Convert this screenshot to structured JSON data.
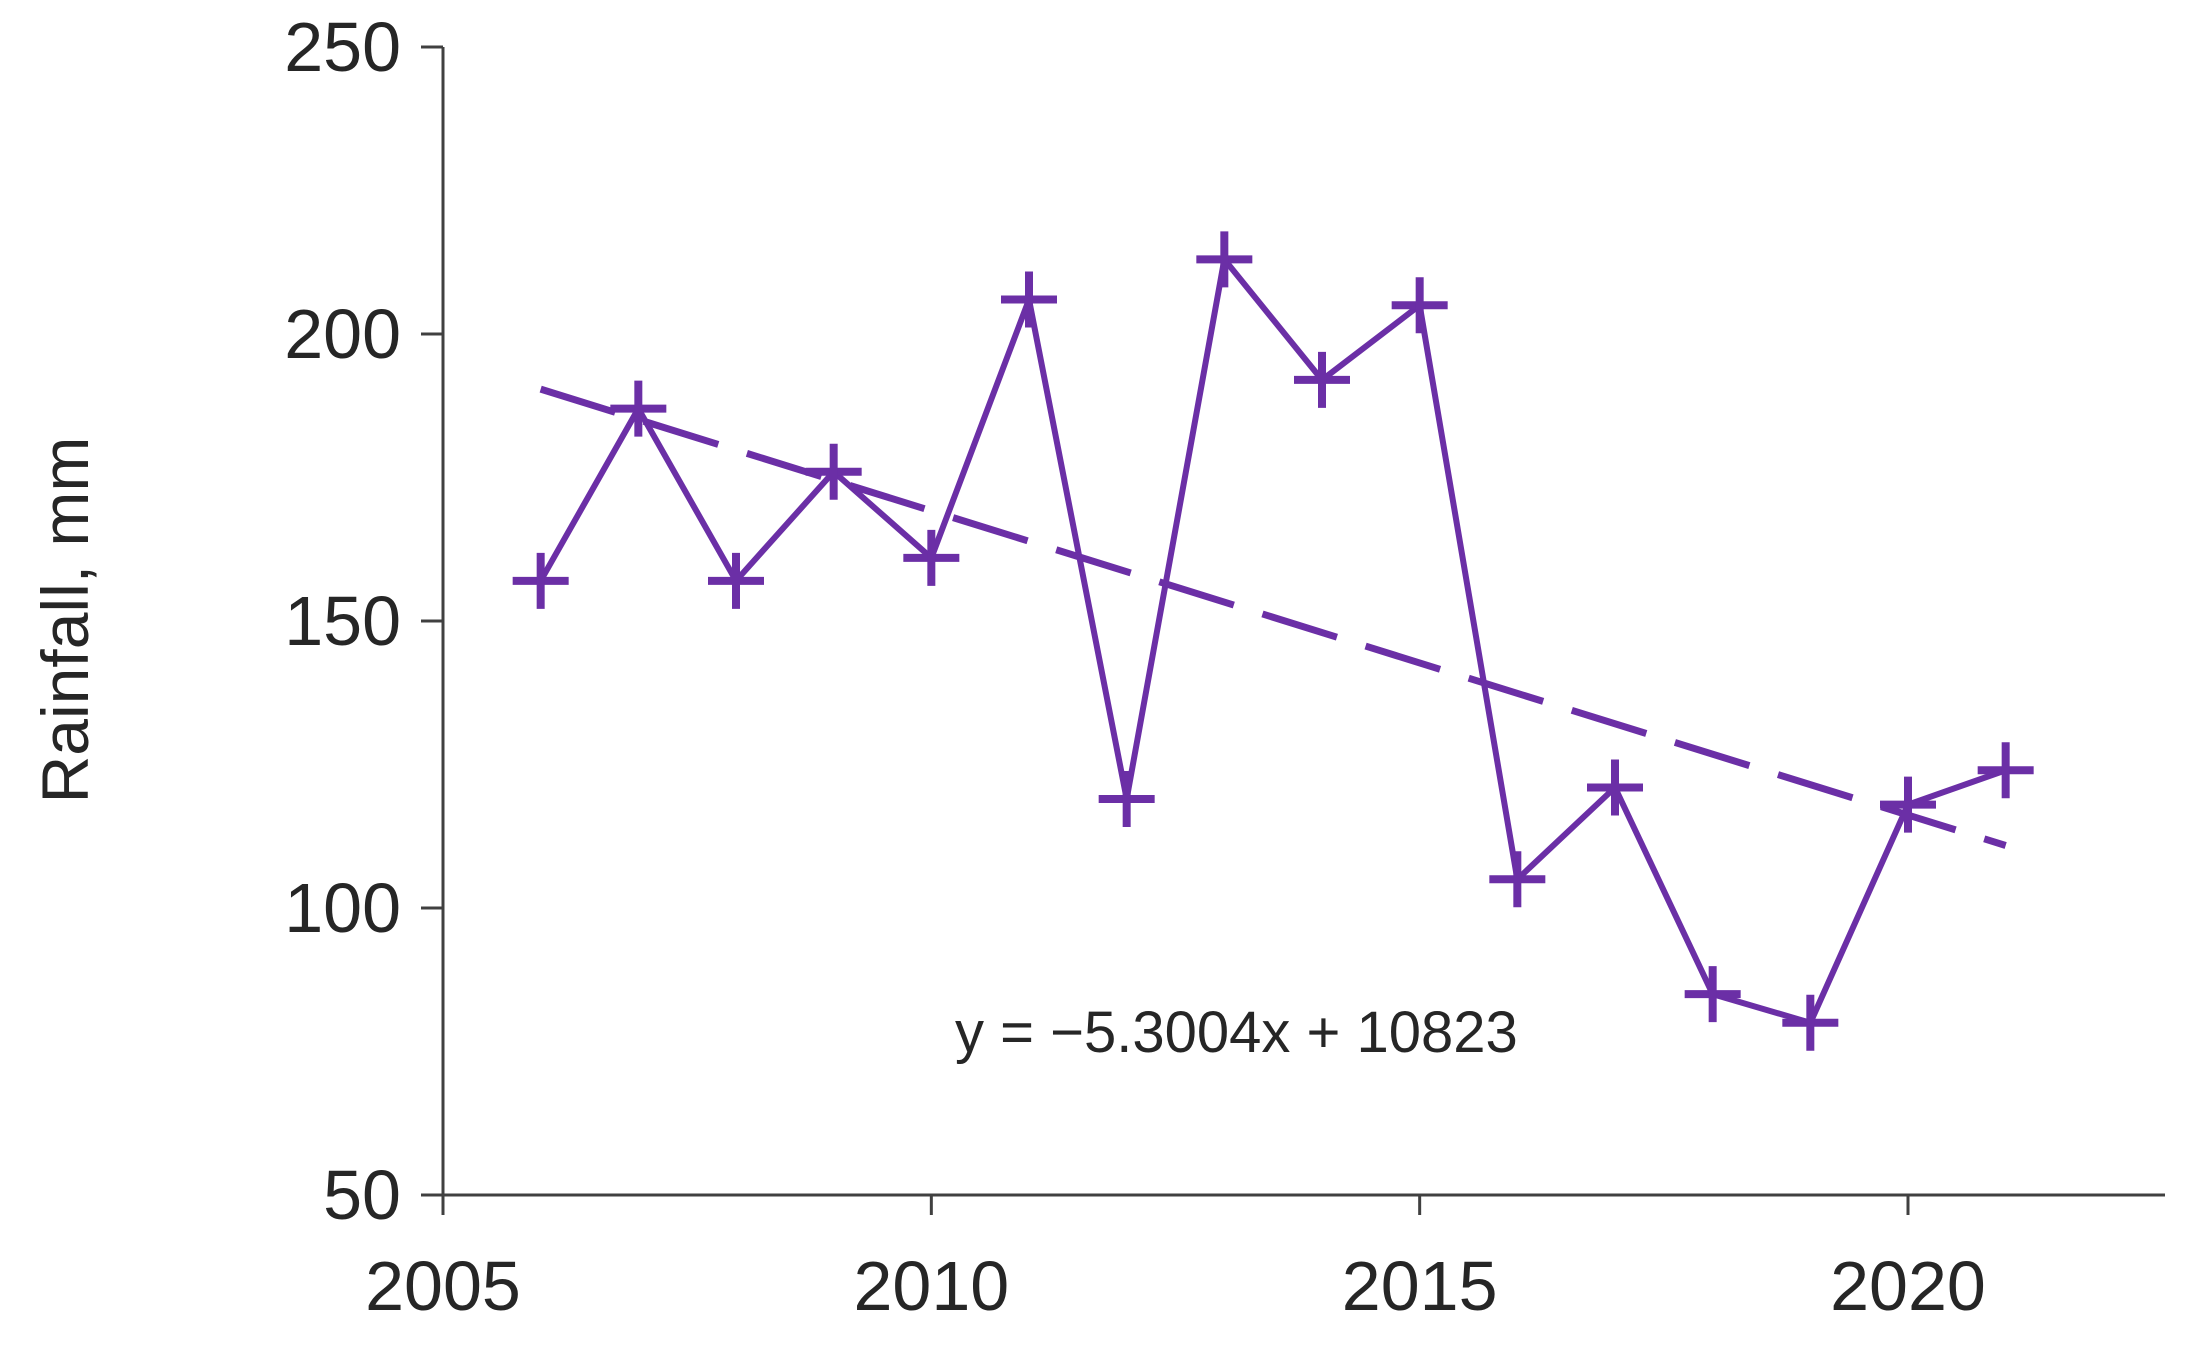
{
  "chart_data": {
    "type": "line",
    "title": "",
    "xlabel": "",
    "ylabel": "Rainfall, mm",
    "xlim": [
      2005,
      2022
    ],
    "ylim": [
      50,
      250
    ],
    "x_ticks": [
      2005,
      2010,
      2015,
      2020
    ],
    "y_ticks": [
      50,
      100,
      150,
      200,
      250
    ],
    "grid": false,
    "legend": "none",
    "series": [
      {
        "marker": "plus",
        "color": "#6B2FA6",
        "x": [
          2006,
          2007,
          2008,
          2009,
          2010,
          2011,
          2012,
          2013,
          2014,
          2015,
          2016,
          2017,
          2018,
          2019,
          2020,
          2021
        ],
        "y": [
          157,
          187,
          157,
          176,
          161,
          206,
          119,
          213,
          192,
          205,
          105,
          121,
          85,
          80,
          118,
          124
        ]
      }
    ],
    "trendline": {
      "style": "dashed",
      "color": "#6B2FA6",
      "slope": -5.3004,
      "intercept": 10823,
      "x_range": [
        2006,
        2021
      ]
    },
    "annotations": [
      {
        "text": "y = −5.3004x + 10823"
      }
    ]
  }
}
